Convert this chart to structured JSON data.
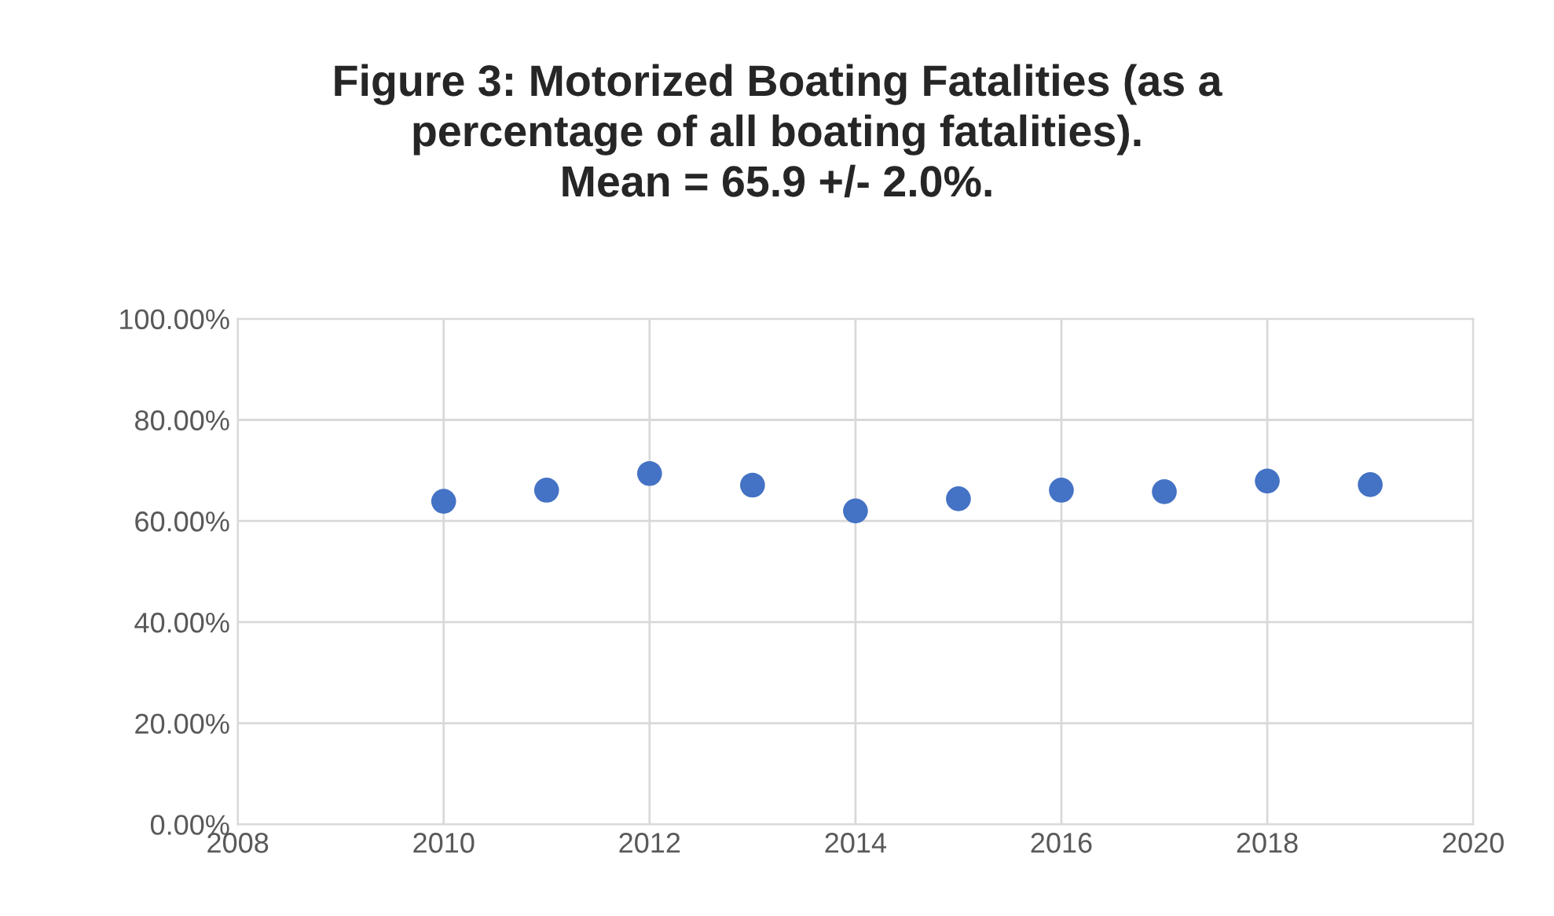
{
  "chart_data": {
    "type": "scatter",
    "title": "Figure 3: Motorized Boating Fatalities (as a\npercentage of all boating fatalities).\nMean = 65.9 +/- 2.0%.",
    "x": [
      2010,
      2011,
      2012,
      2013,
      2014,
      2015,
      2016,
      2017,
      2018,
      2019
    ],
    "series": [
      {
        "color": "#4472c4",
        "values": [
          63.9,
          66.1,
          69.4,
          67.1,
          62.0,
          64.4,
          66.1,
          65.8,
          67.9,
          67.2
        ]
      }
    ],
    "xlim": [
      2008,
      2020
    ],
    "xticks": [
      2008,
      2010,
      2012,
      2014,
      2016,
      2018,
      2020
    ],
    "ylim": [
      0,
      100
    ],
    "yticks": [
      {
        "value": 0,
        "label": "0.00%"
      },
      {
        "value": 20,
        "label": "20.00%"
      },
      {
        "value": 40,
        "label": "40.00%"
      },
      {
        "value": 60,
        "label": "60.00%"
      },
      {
        "value": 80,
        "label": "80.00%"
      },
      {
        "value": 100,
        "label": "100.00%"
      }
    ],
    "grid": true,
    "marker": "circle",
    "legend": false
  }
}
